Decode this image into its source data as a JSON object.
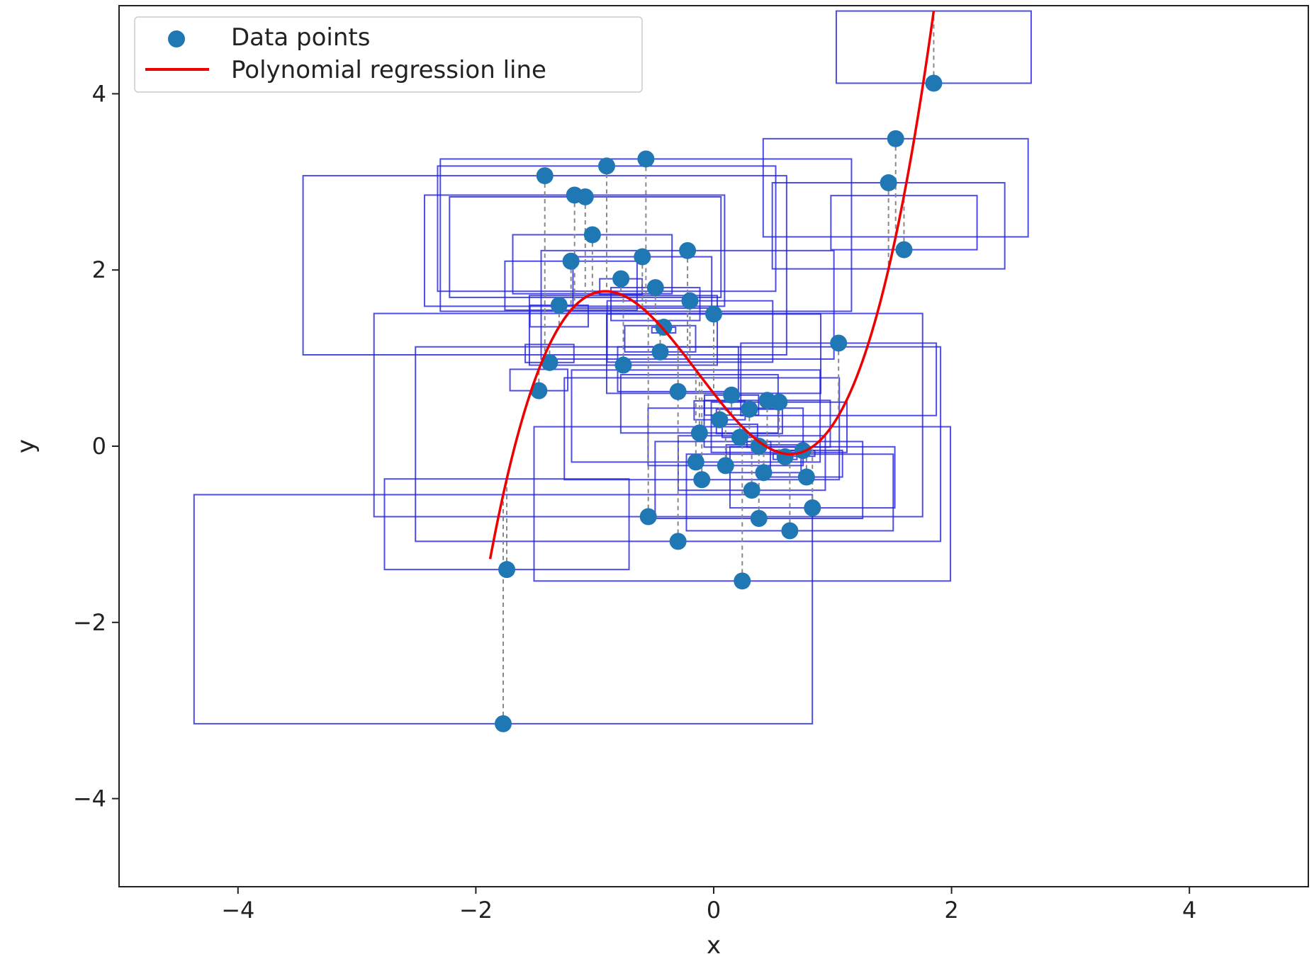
{
  "chart_data": {
    "type": "scatter",
    "title": "",
    "xlabel": "x",
    "ylabel": "y",
    "xlim": [
      -5,
      5
    ],
    "ylim": [
      -5,
      5
    ],
    "xticks": [
      -4,
      -2,
      0,
      2,
      4
    ],
    "yticks": [
      -4,
      -2,
      0,
      2,
      4
    ],
    "xtick_labels": [
      "−4",
      "−2",
      "0",
      "2",
      "4"
    ],
    "ytick_labels": [
      "−4",
      "−2",
      "0",
      "2",
      "4"
    ],
    "grid": false,
    "legend": {
      "placement": "top-left",
      "entries": [
        {
          "label": "Data points",
          "marker": "circle",
          "color": "#1f77b4"
        },
        {
          "label": "Polynomial regression line",
          "marker": "line",
          "color": "#ee0000"
        }
      ]
    },
    "colors": {
      "points": "#1f77b4",
      "regression_line": "#ee0000",
      "error_boxes": "#2222dd",
      "residual_lines": "#888888"
    },
    "regression_curve": {
      "degree": 3,
      "coefficients_high_to_low": [
        0.98,
        0.39,
        -1.73,
        0.6
      ],
      "x_range": [
        -1.88,
        1.85
      ]
    },
    "series": [
      {
        "name": "Data points",
        "points": [
          {
            "x": 1.85,
            "y": 4.12
          },
          {
            "x": 1.53,
            "y": 3.49
          },
          {
            "x": 1.47,
            "y": 2.99
          },
          {
            "x": 1.6,
            "y": 2.23
          },
          {
            "x": 1.05,
            "y": 1.17
          },
          {
            "x": -0.57,
            "y": 3.26
          },
          {
            "x": -0.9,
            "y": 3.18
          },
          {
            "x": -1.42,
            "y": 3.07
          },
          {
            "x": -1.17,
            "y": 2.85
          },
          {
            "x": -1.08,
            "y": 2.83
          },
          {
            "x": -1.02,
            "y": 2.4
          },
          {
            "x": -1.2,
            "y": 2.1
          },
          {
            "x": -0.22,
            "y": 2.22
          },
          {
            "x": -0.6,
            "y": 2.15
          },
          {
            "x": -0.78,
            "y": 1.9
          },
          {
            "x": -0.49,
            "y": 1.8
          },
          {
            "x": -0.2,
            "y": 1.65
          },
          {
            "x": -1.3,
            "y": 1.6
          },
          {
            "x": 0.0,
            "y": 1.5
          },
          {
            "x": -0.42,
            "y": 1.35
          },
          {
            "x": -0.45,
            "y": 1.07
          },
          {
            "x": -1.38,
            "y": 0.95
          },
          {
            "x": -0.76,
            "y": 0.92
          },
          {
            "x": -1.47,
            "y": 0.63
          },
          {
            "x": -0.3,
            "y": 0.62
          },
          {
            "x": 0.15,
            "y": 0.58
          },
          {
            "x": 0.45,
            "y": 0.52
          },
          {
            "x": 0.55,
            "y": 0.5
          },
          {
            "x": 0.3,
            "y": 0.42
          },
          {
            "x": 0.05,
            "y": 0.3
          },
          {
            "x": -0.12,
            "y": 0.15
          },
          {
            "x": 0.22,
            "y": 0.1
          },
          {
            "x": 0.38,
            "y": 0.0
          },
          {
            "x": 0.75,
            "y": -0.05
          },
          {
            "x": 0.6,
            "y": -0.12
          },
          {
            "x": -0.15,
            "y": -0.18
          },
          {
            "x": 0.1,
            "y": -0.22
          },
          {
            "x": 0.42,
            "y": -0.3
          },
          {
            "x": 0.78,
            "y": -0.35
          },
          {
            "x": -0.1,
            "y": -0.38
          },
          {
            "x": 0.32,
            "y": -0.5
          },
          {
            "x": 0.83,
            "y": -0.7
          },
          {
            "x": -0.55,
            "y": -0.8
          },
          {
            "x": 0.38,
            "y": -0.82
          },
          {
            "x": 0.64,
            "y": -0.96
          },
          {
            "x": -0.3,
            "y": -1.08
          },
          {
            "x": 0.24,
            "y": -1.53
          },
          {
            "x": -1.74,
            "y": -1.4
          },
          {
            "x": -1.77,
            "y": -3.15
          }
        ]
      }
    ]
  }
}
